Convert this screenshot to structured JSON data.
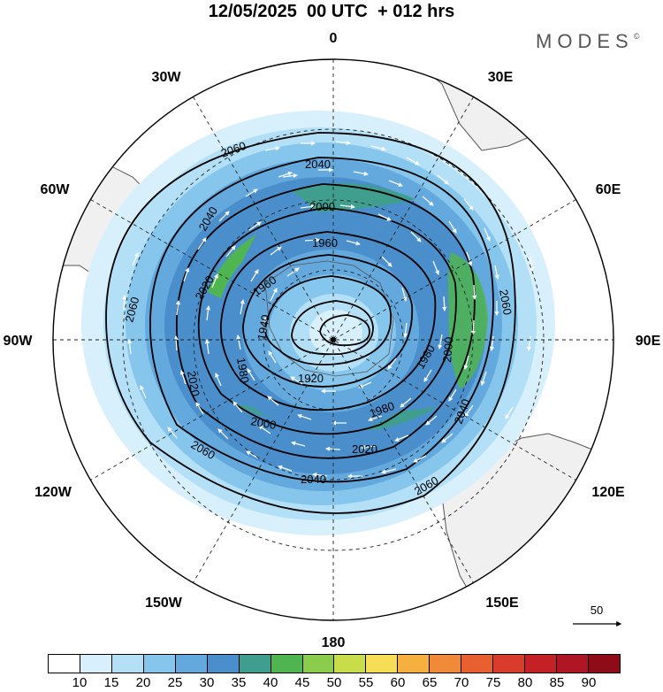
{
  "header": {
    "title": "12/05/2025  00 UTC  + 012 hrs",
    "brand": "MODES",
    "brand_mark": "©"
  },
  "map": {
    "projection": "south polar stereographic",
    "longitude_labels": {
      "top": "0",
      "top_right": "30E",
      "right_upper": "60E",
      "right": "90E",
      "right_lower": "120E",
      "bottom_right": "150E",
      "bottom": "180",
      "bottom_left": "150W",
      "left_lower": "120W",
      "left": "90W",
      "left_upper": "60W",
      "top_left": "30W"
    },
    "contour_labels": [
      "2060",
      "2040",
      "2000",
      "2040",
      "1960",
      "1960",
      "2020",
      "2060",
      "1980",
      "2020",
      "1940",
      "1920",
      "1980",
      "2000",
      "1980",
      "2060",
      "2000",
      "2040",
      "2020",
      "2060",
      "2040",
      "2060"
    ],
    "reference_vector_label": "50",
    "colors": {
      "land": "#f0f0f0",
      "coast": "#555555",
      "grid": "#222222",
      "contour": "#000000",
      "vector": "#ffffff"
    }
  },
  "colorbar": {
    "ticks": [
      "10",
      "15",
      "20",
      "25",
      "30",
      "35",
      "40",
      "45",
      "50",
      "55",
      "60",
      "65",
      "70",
      "75",
      "80",
      "85",
      "90"
    ],
    "colors": [
      "#ffffff",
      "#d8f0fb",
      "#b3e0f6",
      "#86c6ec",
      "#64a9de",
      "#4a8fcb",
      "#3f9e8e",
      "#4fb550",
      "#8ccc4c",
      "#c9dc4a",
      "#f5dd55",
      "#f5b040",
      "#f08a38",
      "#e8602f",
      "#d93c2a",
      "#c42126",
      "#ad1622",
      "#8e0c18"
    ]
  }
}
